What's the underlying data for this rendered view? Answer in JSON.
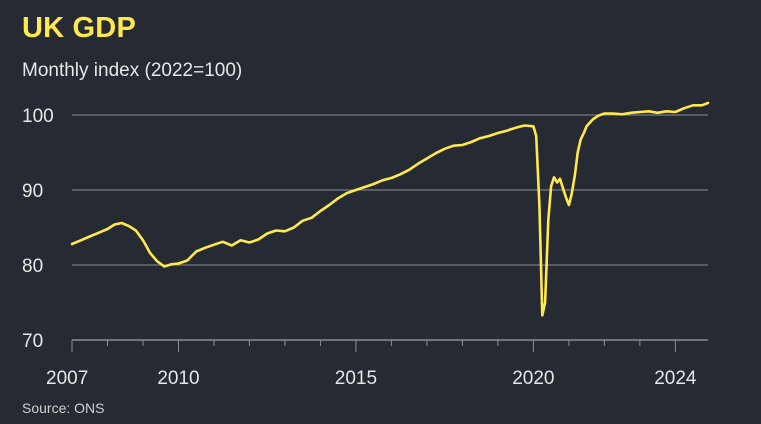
{
  "header": {
    "title": "UK GDP",
    "subtitle": "Monthly index (2022=100)"
  },
  "footer": {
    "source": "Source: ONS"
  },
  "colors": {
    "background": "#262a33",
    "line": "#ffe94d",
    "grid": "#8a8d94",
    "text": "#e6e6e6"
  },
  "chart_data": {
    "type": "line",
    "title": "UK GDP",
    "subtitle": "Monthly index (2022=100)",
    "xlabel": "",
    "ylabel": "",
    "xlim": [
      2007.0,
      2024.92
    ],
    "ylim": [
      70,
      100
    ],
    "y_ticks": [
      70,
      80,
      90,
      100
    ],
    "y_tick_labels": [
      "70",
      "80",
      "90",
      "100"
    ],
    "x_ticks": [
      2007,
      2010,
      2015,
      2020,
      2024
    ],
    "x_tick_labels": [
      "2007",
      "2010",
      "2015",
      "2020",
      "2024"
    ],
    "grid": true,
    "legend": "none",
    "series": [
      {
        "x": [
          2007.0,
          2007.25,
          2007.5,
          2007.75,
          2008.0,
          2008.2,
          2008.4,
          2008.6,
          2008.8,
          2009.0,
          2009.2,
          2009.4,
          2009.6,
          2009.8,
          2010.0,
          2010.25,
          2010.5,
          2010.75,
          2011.0,
          2011.25,
          2011.5,
          2011.75,
          2012.0,
          2012.25,
          2012.5,
          2012.75,
          2013.0,
          2013.25,
          2013.5,
          2013.75,
          2014.0,
          2014.25,
          2014.5,
          2014.75,
          2015.0,
          2015.25,
          2015.5,
          2015.75,
          2016.0,
          2016.25,
          2016.5,
          2016.75,
          2017.0,
          2017.25,
          2017.5,
          2017.75,
          2018.0,
          2018.25,
          2018.5,
          2018.75,
          2019.0,
          2019.25,
          2019.5,
          2019.75,
          2020.0,
          2020.08,
          2020.17,
          2020.25,
          2020.33,
          2020.42,
          2020.5,
          2020.58,
          2020.67,
          2020.75,
          2020.83,
          2020.92,
          2021.0,
          2021.08,
          2021.17,
          2021.25,
          2021.33,
          2021.42,
          2021.5,
          2021.67,
          2021.83,
          2022.0,
          2022.25,
          2022.5,
          2022.75,
          2023.0,
          2023.25,
          2023.5,
          2023.75,
          2024.0,
          2024.25,
          2024.5,
          2024.75,
          2024.92
        ],
        "values": [
          82.8,
          83.3,
          83.8,
          84.3,
          84.8,
          85.4,
          85.6,
          85.2,
          84.6,
          83.3,
          81.6,
          80.5,
          79.8,
          80.1,
          80.2,
          80.6,
          81.8,
          82.3,
          82.7,
          83.1,
          82.6,
          83.3,
          83.0,
          83.4,
          84.2,
          84.6,
          84.5,
          85.0,
          85.9,
          86.3,
          87.2,
          88.0,
          88.9,
          89.6,
          90.0,
          90.4,
          90.8,
          91.3,
          91.6,
          92.1,
          92.7,
          93.5,
          94.2,
          94.9,
          95.5,
          95.9,
          96.0,
          96.4,
          96.9,
          97.2,
          97.6,
          97.9,
          98.3,
          98.6,
          98.5,
          97.2,
          88.0,
          73.3,
          75.0,
          86.0,
          90.5,
          91.7,
          91.0,
          91.5,
          90.3,
          89.0,
          88.0,
          89.5,
          92.0,
          95.0,
          96.7,
          97.6,
          98.5,
          99.4,
          99.9,
          100.2,
          100.2,
          100.1,
          100.3,
          100.4,
          100.5,
          100.3,
          100.5,
          100.4,
          100.9,
          101.3,
          101.3,
          101.6
        ]
      }
    ]
  }
}
